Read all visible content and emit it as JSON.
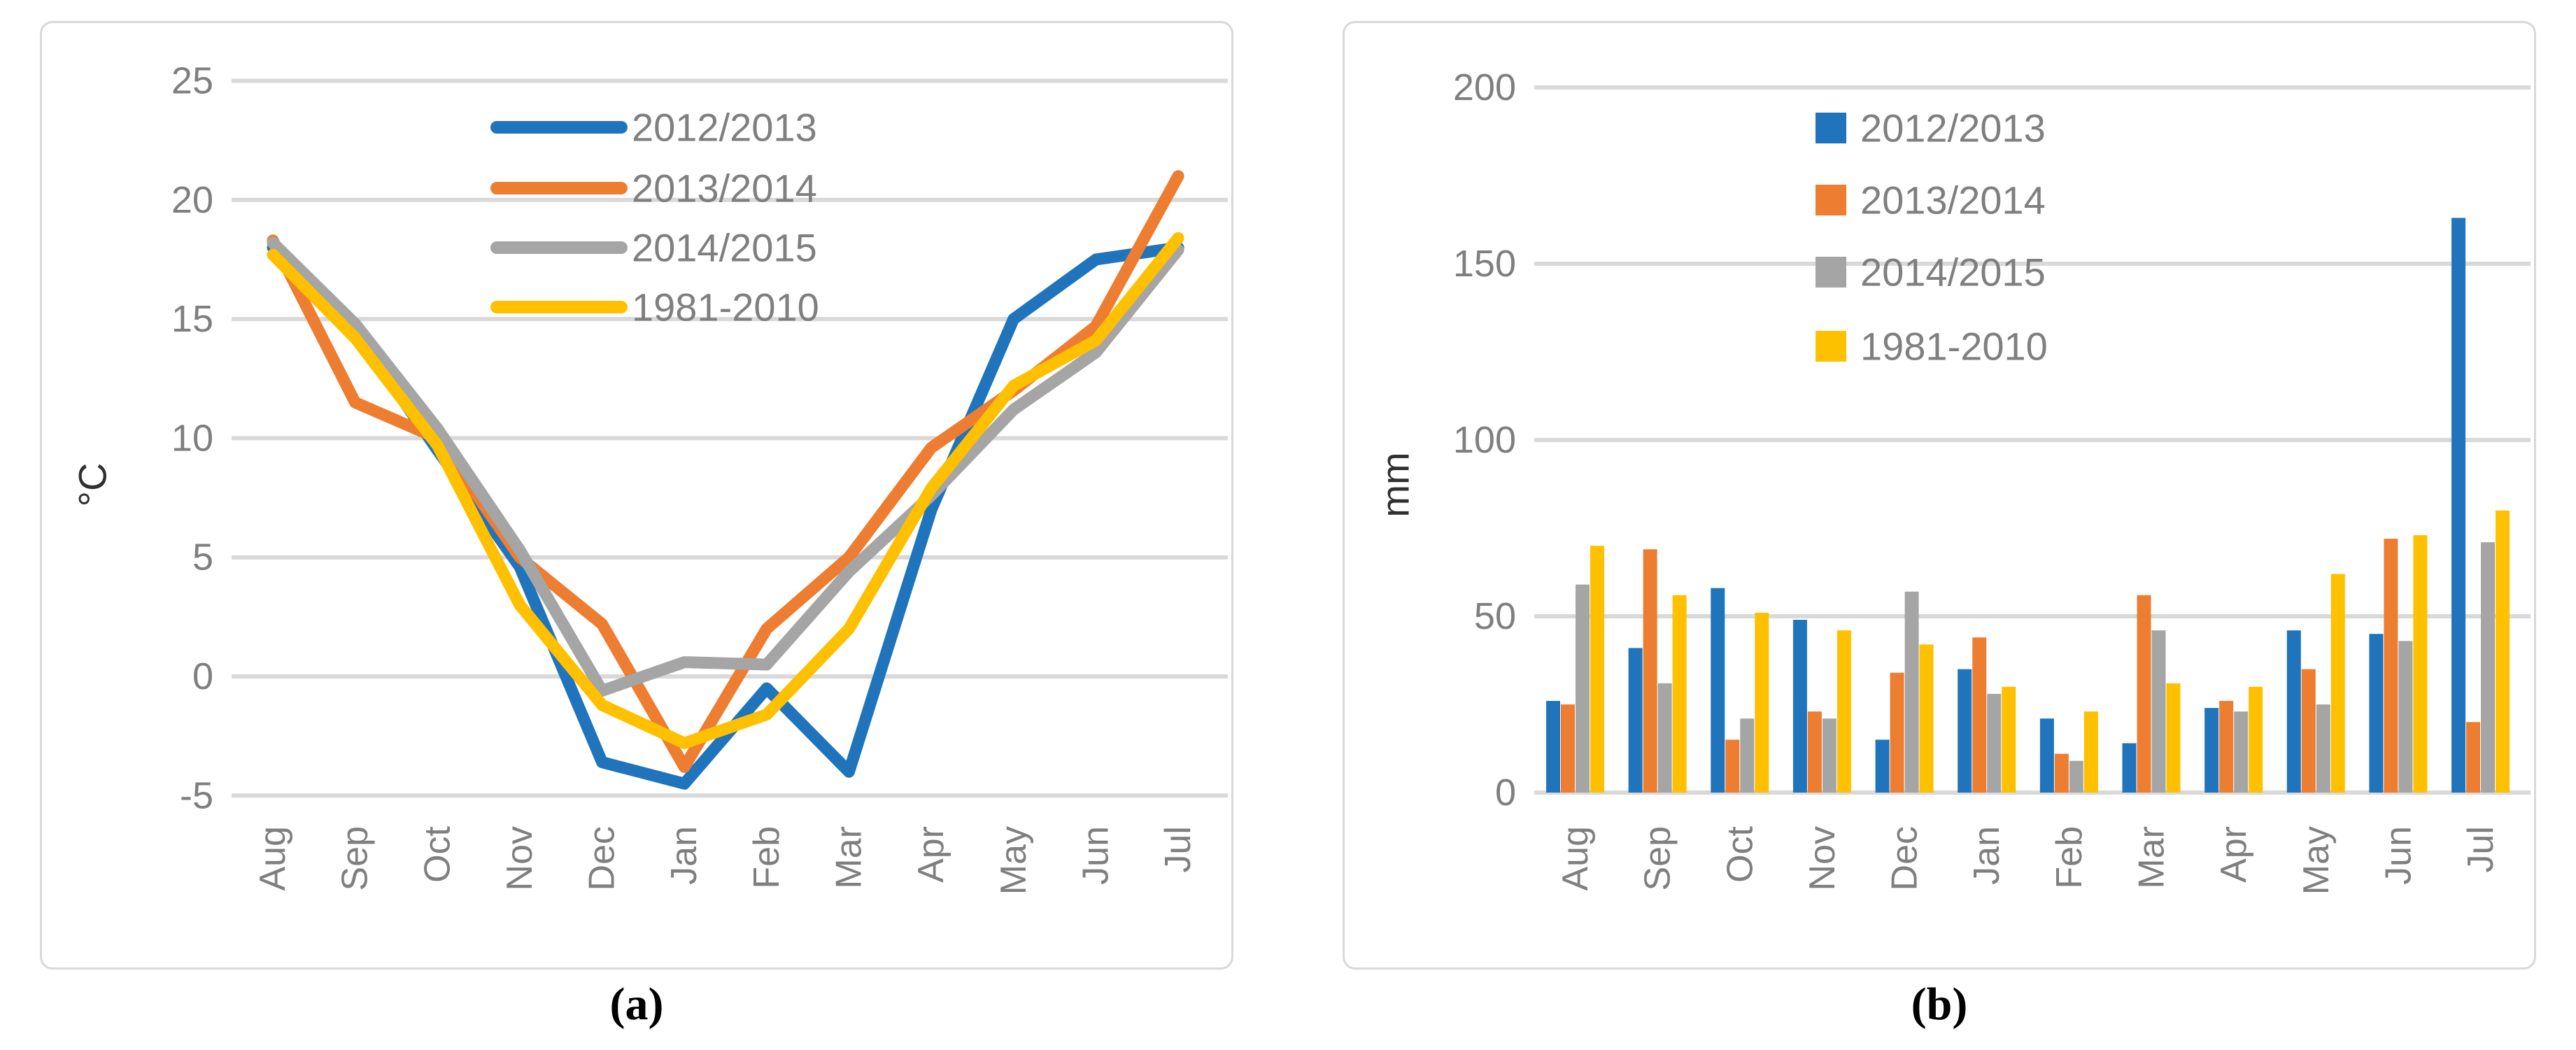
{
  "figure": {
    "caption_a": "(a)",
    "caption_b": "(b)"
  },
  "months": [
    "Aug",
    "Sep",
    "Oct",
    "Nov",
    "Dec",
    "Jan",
    "Feb",
    "Mar",
    "Apr",
    "May",
    "Jun",
    "Jul"
  ],
  "colors": {
    "series_blue": "#1F74BC",
    "series_orange": "#ED7D31",
    "series_gray": "#A5A5A5",
    "series_yellow": "#FFC000",
    "gridline": "#D9D9D9",
    "axis_text": "#7F7F7F",
    "axis_title": "#303030",
    "panel_border": "#D9D9D9"
  },
  "chart_data": [
    {
      "id": "temperature",
      "type": "line",
      "title": "",
      "xlabel": "",
      "ylabel": "°C",
      "ylim": [
        -5,
        25
      ],
      "yticks": [
        25,
        20,
        15,
        10,
        5,
        0,
        -5
      ],
      "grid": true,
      "legend_position": "inside-top-center",
      "categories": [
        "Aug",
        "Sep",
        "Oct",
        "Nov",
        "Dec",
        "Jan",
        "Feb",
        "Mar",
        "Apr",
        "May",
        "Jun",
        "Jul"
      ],
      "series": [
        {
          "name": "2012/2013",
          "color": "#1F74BC",
          "values": [
            18.0,
            14.5,
            9.5,
            4.6,
            -3.6,
            -4.5,
            -0.5,
            -4.0,
            7.0,
            15.0,
            17.5,
            18.0
          ]
        },
        {
          "name": "2013/2014",
          "color": "#ED7D31",
          "values": [
            18.3,
            11.5,
            10.0,
            5.0,
            2.2,
            -3.8,
            2.0,
            5.0,
            9.6,
            12.0,
            14.7,
            21.0
          ]
        },
        {
          "name": "2014/2015",
          "color": "#A5A5A5",
          "values": [
            18.2,
            14.8,
            10.4,
            5.3,
            -0.6,
            0.6,
            0.5,
            4.4,
            7.6,
            11.2,
            13.6,
            17.9
          ]
        },
        {
          "name": "1981-2010",
          "color": "#FFC000",
          "values": [
            17.7,
            14.2,
            9.7,
            3.0,
            -1.2,
            -2.8,
            -1.6,
            2.0,
            7.9,
            12.2,
            14.1,
            18.4
          ]
        }
      ]
    },
    {
      "id": "precipitation",
      "type": "bar",
      "title": "",
      "xlabel": "",
      "ylabel": "mm",
      "ylim": [
        0,
        200
      ],
      "yticks": [
        200,
        150,
        100,
        50,
        0
      ],
      "grid": true,
      "legend_position": "inside-top-center",
      "categories": [
        "Aug",
        "Sep",
        "Oct",
        "Nov",
        "Dec",
        "Jan",
        "Feb",
        "Mar",
        "Apr",
        "May",
        "Jun",
        "Jul"
      ],
      "series": [
        {
          "name": "2012/2013",
          "color": "#1F74BC",
          "values": [
            26,
            41,
            58,
            49,
            15,
            35,
            21,
            14,
            24,
            46,
            45,
            163
          ]
        },
        {
          "name": "2013/2014",
          "color": "#ED7D31",
          "values": [
            25,
            69,
            15,
            23,
            34,
            44,
            11,
            56,
            26,
            35,
            72,
            20
          ]
        },
        {
          "name": "2014/2015",
          "color": "#A5A5A5",
          "values": [
            59,
            31,
            21,
            21,
            57,
            28,
            9,
            46,
            23,
            25,
            43,
            71
          ]
        },
        {
          "name": "1981-2010",
          "color": "#FFC000",
          "values": [
            70,
            56,
            51,
            46,
            42,
            30,
            23,
            31,
            30,
            62,
            73,
            80
          ]
        }
      ]
    }
  ]
}
